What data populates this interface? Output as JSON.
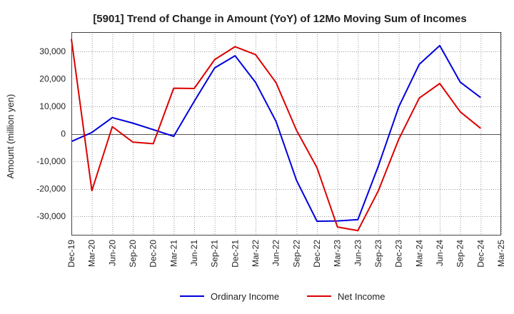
{
  "chart_data": {
    "type": "line",
    "title": "[5901]  Trend of Change in Amount (YoY) of 12Mo Moving Sum of Incomes",
    "ylabel": "Amount (million yen)",
    "xlabel": "",
    "ylim": [
      -37000,
      37000
    ],
    "yticks": [
      -30000,
      -20000,
      -10000,
      0,
      10000,
      20000,
      30000
    ],
    "ytick_labels": [
      "-30,000",
      "-20,000",
      "-10,000",
      "0",
      "10,000",
      "20,000",
      "30,000"
    ],
    "x": [
      "Dec-19",
      "Mar-20",
      "Jun-20",
      "Sep-20",
      "Dec-20",
      "Mar-21",
      "Jun-21",
      "Sep-21",
      "Dec-21",
      "Mar-22",
      "Jun-22",
      "Sep-22",
      "Dec-22",
      "Mar-23",
      "Jun-23",
      "Sep-23",
      "Dec-23",
      "Mar-24",
      "Jun-24",
      "Sep-24",
      "Dec-24",
      "Mar-25"
    ],
    "grid": true,
    "legend_position": "bottom",
    "series": [
      {
        "name": "Ordinary Income",
        "color": "#0000dd",
        "values": [
          -2800,
          500,
          5900,
          3900,
          1500,
          -900,
          11800,
          24000,
          28400,
          18700,
          4500,
          -16900,
          -31800,
          -31700,
          -31200,
          -11700,
          9900,
          25300,
          32100,
          18800,
          13200,
          null
        ]
      },
      {
        "name": "Net Income",
        "color": "#dd0000",
        "values": [
          34500,
          -20700,
          2600,
          -3000,
          -3600,
          16600,
          16500,
          27000,
          31700,
          28800,
          18600,
          1300,
          -12300,
          -33900,
          -35200,
          -20700,
          -1900,
          13000,
          18300,
          8000,
          2000,
          null
        ]
      }
    ]
  }
}
